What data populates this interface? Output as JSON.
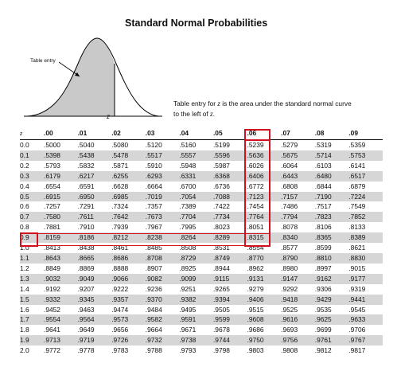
{
  "title": "Standard Normal Probabilities",
  "curve": {
    "entry_label": "Table entry",
    "z_label": "z"
  },
  "description": {
    "line1_before": "Table entry for ",
    "z1": "z",
    "line1_after": " is the area under the standard normal curve",
    "line2_before": "to the left of ",
    "z2": "z",
    "line2_after": "."
  },
  "table": {
    "z_header": "z",
    "columns": [
      ".00",
      ".01",
      ".02",
      ".03",
      ".04",
      ".05",
      ".06",
      ".07",
      ".08",
      ".09"
    ],
    "highlight": {
      "column": ".06",
      "row": "0.9",
      "color": "#d2101e"
    },
    "shade_color": "#d6d6d6",
    "rows": [
      {
        "z": "0.0",
        "v": [
          ".5000",
          ".5040",
          ".5080",
          ".5120",
          ".5160",
          ".5199",
          ".5239",
          ".5279",
          ".5319",
          ".5359"
        ]
      },
      {
        "z": "0.1",
        "v": [
          ".5398",
          ".5438",
          ".5478",
          ".5517",
          ".5557",
          ".5596",
          ".5636",
          ".5675",
          ".5714",
          ".5753"
        ]
      },
      {
        "z": "0.2",
        "v": [
          ".5793",
          ".5832",
          ".5871",
          ".5910",
          ".5948",
          ".5987",
          ".6026",
          ".6064",
          ".6103",
          ".6141"
        ]
      },
      {
        "z": "0.3",
        "v": [
          ".6179",
          ".6217",
          ".6255",
          ".6293",
          ".6331",
          ".6368",
          ".6406",
          ".6443",
          ".6480",
          ".6517"
        ]
      },
      {
        "z": "0.4",
        "v": [
          ".6554",
          ".6591",
          ".6628",
          ".6664",
          ".6700",
          ".6736",
          ".6772",
          ".6808",
          ".6844",
          ".6879"
        ]
      },
      {
        "z": "0.5",
        "v": [
          ".6915",
          ".6950",
          ".6985",
          ".7019",
          ".7054",
          ".7088",
          ".7123",
          ".7157",
          ".7190",
          ".7224"
        ]
      },
      {
        "z": "0.6",
        "v": [
          ".7257",
          ".7291",
          ".7324",
          ".7357",
          ".7389",
          ".7422",
          ".7454",
          ".7486",
          ".7517",
          ".7549"
        ]
      },
      {
        "z": "0.7",
        "v": [
          ".7580",
          ".7611",
          ".7642",
          ".7673",
          ".7704",
          ".7734",
          ".7764",
          ".7794",
          ".7823",
          ".7852"
        ]
      },
      {
        "z": "0.8",
        "v": [
          ".7881",
          ".7910",
          ".7939",
          ".7967",
          ".7995",
          ".8023",
          ".8051",
          ".8078",
          ".8106",
          ".8133"
        ]
      },
      {
        "z": "0.9",
        "v": [
          ".8159",
          ".8186",
          ".8212",
          ".8238",
          ".8264",
          ".8289",
          ".8315",
          ".8340",
          ".8365",
          ".8389"
        ]
      },
      {
        "z": "1.0",
        "v": [
          ".8413",
          ".8438",
          ".8461",
          ".8485",
          ".8508",
          ".8531",
          ".8554",
          ".8577",
          ".8599",
          ".8621"
        ]
      },
      {
        "z": "1.1",
        "v": [
          ".8643",
          ".8665",
          ".8686",
          ".8708",
          ".8729",
          ".8749",
          ".8770",
          ".8790",
          ".8810",
          ".8830"
        ]
      },
      {
        "z": "1.2",
        "v": [
          ".8849",
          ".8869",
          ".8888",
          ".8907",
          ".8925",
          ".8944",
          ".8962",
          ".8980",
          ".8997",
          ".9015"
        ]
      },
      {
        "z": "1.3",
        "v": [
          ".9032",
          ".9049",
          ".9066",
          ".9082",
          ".9099",
          ".9115",
          ".9131",
          ".9147",
          ".9162",
          ".9177"
        ]
      },
      {
        "z": "1.4",
        "v": [
          ".9192",
          ".9207",
          ".9222",
          ".9236",
          ".9251",
          ".9265",
          ".9279",
          ".9292",
          ".9306",
          ".9319"
        ]
      },
      {
        "z": "1.5",
        "v": [
          ".9332",
          ".9345",
          ".9357",
          ".9370",
          ".9382",
          ".9394",
          ".9406",
          ".9418",
          ".9429",
          ".9441"
        ]
      },
      {
        "z": "1.6",
        "v": [
          ".9452",
          ".9463",
          ".9474",
          ".9484",
          ".9495",
          ".9505",
          ".9515",
          ".9525",
          ".9535",
          ".9545"
        ]
      },
      {
        "z": "1.7",
        "v": [
          ".9554",
          ".9564",
          ".9573",
          ".9582",
          ".9591",
          ".9599",
          ".9608",
          ".9616",
          ".9625",
          ".9633"
        ]
      },
      {
        "z": "1.8",
        "v": [
          ".9641",
          ".9649",
          ".9656",
          ".9664",
          ".9671",
          ".9678",
          ".9686",
          ".9693",
          ".9699",
          ".9706"
        ]
      },
      {
        "z": "1.9",
        "v": [
          ".9713",
          ".9719",
          ".9726",
          ".9732",
          ".9738",
          ".9744",
          ".9750",
          ".9756",
          ".9761",
          ".9767"
        ]
      },
      {
        "z": "2.0",
        "v": [
          ".9772",
          ".9778",
          ".9783",
          ".9788",
          ".9793",
          ".9798",
          ".9803",
          ".9808",
          ".9812",
          ".9817"
        ]
      }
    ]
  }
}
